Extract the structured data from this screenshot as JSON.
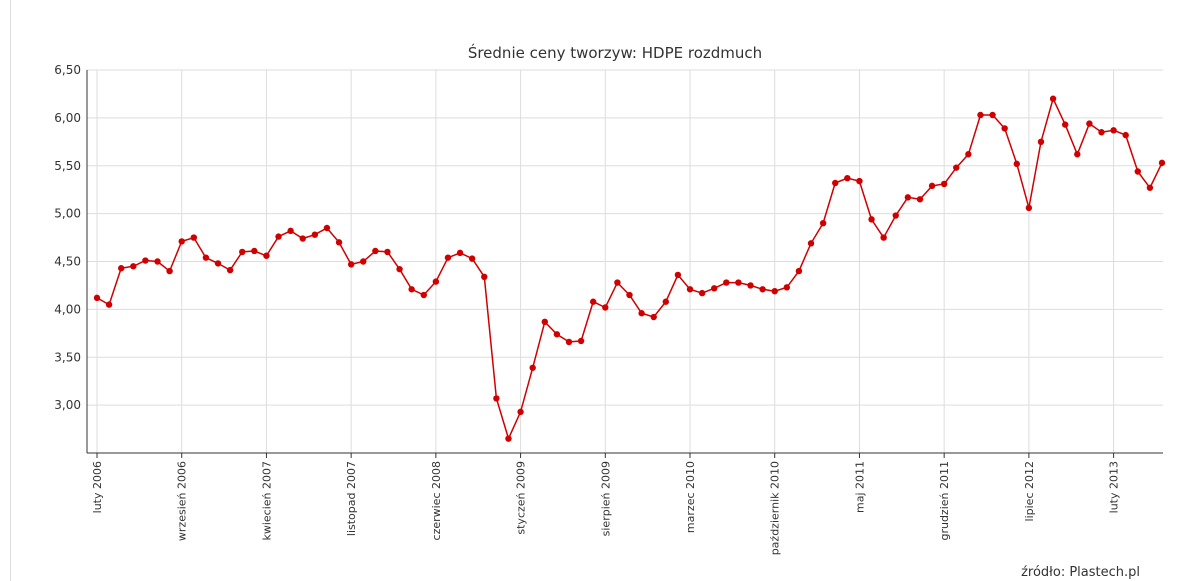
{
  "chart_data": {
    "type": "line",
    "title": "Średnie ceny tworzyw: HDPE rozdmuch",
    "source": "źródło: Plastech.pl",
    "categories": [
      "luty 2006",
      null,
      null,
      null,
      null,
      null,
      null,
      "wrzesień 2006",
      null,
      null,
      null,
      null,
      null,
      null,
      "kwiecień 2007",
      null,
      null,
      null,
      null,
      null,
      null,
      "listopad 2007",
      null,
      null,
      null,
      null,
      null,
      null,
      "czerwiec 2008",
      null,
      null,
      null,
      null,
      null,
      null,
      "styczeń 2009",
      null,
      null,
      null,
      null,
      null,
      null,
      "sierpień 2009",
      null,
      null,
      null,
      null,
      null,
      null,
      "marzec 2010",
      null,
      null,
      null,
      null,
      null,
      null,
      "październik 2010",
      null,
      null,
      null,
      null,
      null,
      null,
      "maj 2011",
      null,
      null,
      null,
      null,
      null,
      null,
      "grudzień 2011",
      null,
      null,
      null,
      null,
      null,
      null,
      "lipiec 2012",
      null,
      null,
      null,
      null,
      null,
      null,
      "luty 2013",
      null,
      null,
      null,
      null
    ],
    "values": [
      4.12,
      4.05,
      4.43,
      4.45,
      4.51,
      4.5,
      4.4,
      4.71,
      4.75,
      4.54,
      4.48,
      4.41,
      4.6,
      4.61,
      4.56,
      4.76,
      4.82,
      4.74,
      4.78,
      4.85,
      4.7,
      4.47,
      4.5,
      4.61,
      4.6,
      4.42,
      4.21,
      4.15,
      4.29,
      4.54,
      4.59,
      4.53,
      4.34,
      3.07,
      2.65,
      2.93,
      3.39,
      3.87,
      3.74,
      3.66,
      3.67,
      4.08,
      4.02,
      4.28,
      4.15,
      3.96,
      3.92,
      4.08,
      4.36,
      4.21,
      4.17,
      4.22,
      4.28,
      4.28,
      4.25,
      4.21,
      4.19,
      4.23,
      4.4,
      4.69,
      4.9,
      5.32,
      5.37,
      5.34,
      4.94,
      4.75,
      4.98,
      5.17,
      5.15,
      5.29,
      5.31,
      5.48,
      5.62,
      6.03,
      6.03,
      5.89,
      5.52,
      5.06,
      5.75,
      6.2,
      5.93,
      5.62,
      5.94,
      5.85,
      5.87,
      5.82,
      5.44,
      5.27,
      5.53
    ],
    "color": "#d00000",
    "ylim": [
      2.5,
      6.5
    ],
    "yticks": [
      {
        "value": 3,
        "label": "3,00"
      },
      {
        "value": 3.5,
        "label": "3,50"
      },
      {
        "value": 4,
        "label": "4,00"
      },
      {
        "value": 4.5,
        "label": "4,50"
      },
      {
        "value": 5,
        "label": "5,00"
      },
      {
        "value": 5.5,
        "label": "5,50"
      },
      {
        "value": 6,
        "label": "6,00"
      },
      {
        "value": 6.5,
        "label": "6,50"
      }
    ],
    "grid": true
  }
}
